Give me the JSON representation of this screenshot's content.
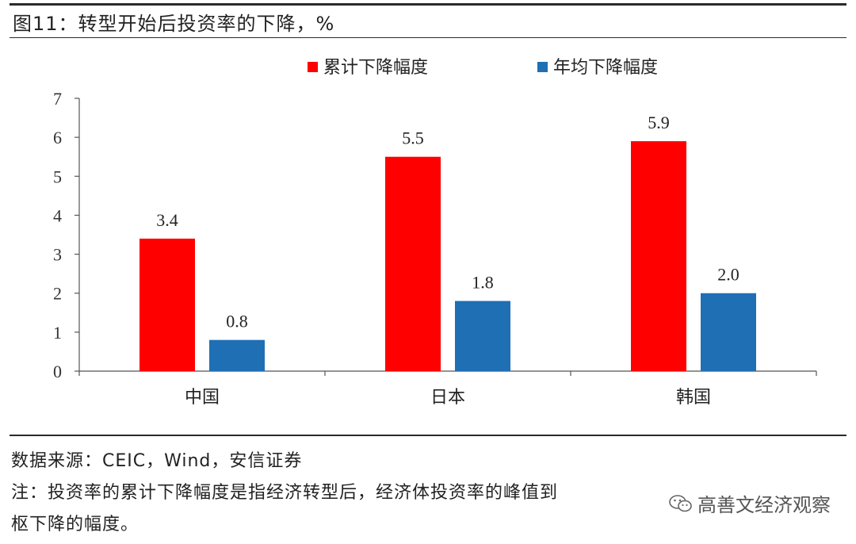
{
  "figure": {
    "title": "图11：转型开始后投资率的下降，%"
  },
  "chart_data": {
    "type": "bar",
    "categories": [
      "中国",
      "日本",
      "韩国"
    ],
    "series": [
      {
        "name": "累计下降幅度",
        "values": [
          3.4,
          5.5,
          5.9
        ],
        "labels": [
          "3.4",
          "5.5",
          "5.9"
        ],
        "color": "#ff0000"
      },
      {
        "name": "年均下降幅度",
        "values": [
          0.8,
          1.8,
          2.0
        ],
        "labels": [
          "0.8",
          "1.8",
          "2.0"
        ],
        "color": "#1f6fb4"
      }
    ],
    "ylim": [
      0,
      7
    ],
    "yticks": [
      "0",
      "1",
      "2",
      "3",
      "4",
      "5",
      "6",
      "7"
    ],
    "grid": false,
    "legend_position": "top"
  },
  "notes": {
    "source": "数据来源：CEIC，Wind，安信证券",
    "note_line1": "注：投资率的累计下降幅度是指经济转型后，经济体投资率的峰值到",
    "note_line2": "枢下降的幅度。"
  },
  "watermark": {
    "text": "高善文经济观察",
    "icon": "wechat-icon"
  }
}
